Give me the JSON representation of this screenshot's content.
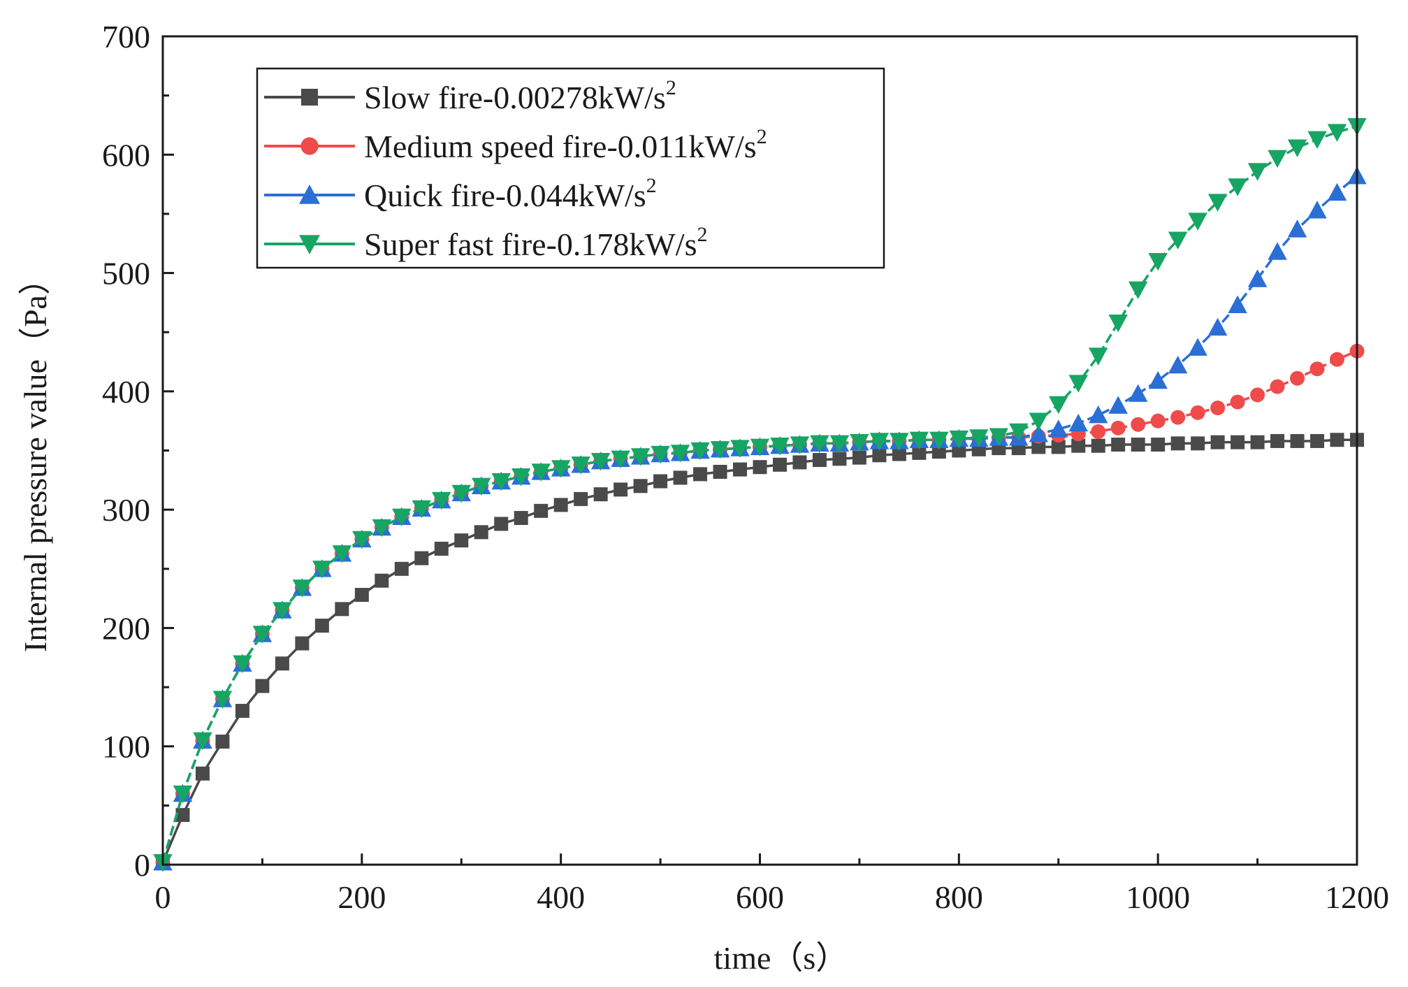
{
  "chart_data": {
    "type": "line",
    "xlabel": "time（s）",
    "ylabel": "Internal pressure value（Pa）",
    "xlim": [
      0,
      1200
    ],
    "ylim": [
      0,
      700
    ],
    "xticks": [
      "0",
      "200",
      "400",
      "600",
      "800",
      "1000",
      "1200"
    ],
    "yticks": [
      "0",
      "100",
      "200",
      "300",
      "400",
      "500",
      "600",
      "700"
    ],
    "grid": false,
    "legend_position": "top-left",
    "x": [
      0,
      20,
      40,
      60,
      80,
      100,
      120,
      140,
      160,
      180,
      200,
      220,
      240,
      260,
      280,
      300,
      320,
      340,
      360,
      380,
      400,
      420,
      440,
      460,
      480,
      500,
      520,
      540,
      560,
      580,
      600,
      620,
      640,
      660,
      680,
      700,
      720,
      740,
      760,
      780,
      800,
      820,
      840,
      860,
      880,
      900,
      920,
      940,
      960,
      980,
      1000,
      1020,
      1040,
      1060,
      1080,
      1100,
      1120,
      1140,
      1160,
      1180,
      1200
    ],
    "series": [
      {
        "name": "Slow fire-0.00278kW/s",
        "sup": "2",
        "color": "#4a4a4a",
        "marker": "square",
        "values": [
          2,
          42,
          77,
          104,
          130,
          151,
          170,
          187,
          202,
          216,
          228,
          240,
          250,
          259,
          267,
          274,
          281,
          288,
          293,
          299,
          304,
          309,
          313,
          317,
          320,
          324,
          327,
          330,
          332,
          334,
          336,
          338,
          340,
          342,
          343,
          344,
          346,
          347,
          348,
          349,
          350,
          351,
          352,
          352,
          353,
          353,
          354,
          354,
          355,
          355,
          355,
          356,
          356,
          357,
          357,
          357,
          358,
          358,
          358,
          359,
          359
        ]
      },
      {
        "name": "Medium speed fire-0.011kW/s",
        "sup": "2",
        "color": "#ef4b4b",
        "marker": "circle",
        "values": [
          2,
          60,
          105,
          140,
          170,
          195,
          215,
          234,
          250,
          263,
          275,
          285,
          294,
          301,
          308,
          314,
          320,
          324,
          328,
          332,
          335,
          338,
          341,
          343,
          345,
          347,
          348,
          350,
          351,
          352,
          353,
          354,
          355,
          356,
          356,
          357,
          358,
          358,
          359,
          359,
          360,
          360,
          361,
          361,
          362,
          363,
          364,
          366,
          369,
          372,
          375,
          378,
          382,
          386,
          391,
          397,
          404,
          411,
          419,
          427,
          434
        ]
      },
      {
        "name": "Quick fire-0.044kW/s",
        "sup": "2",
        "color": "#2b6fd6",
        "marker": "triangle-up",
        "values": [
          2,
          60,
          105,
          140,
          170,
          195,
          215,
          234,
          250,
          263,
          275,
          285,
          294,
          301,
          308,
          314,
          320,
          324,
          328,
          332,
          335,
          338,
          341,
          343,
          345,
          347,
          348,
          350,
          351,
          352,
          353,
          354,
          355,
          356,
          356,
          357,
          358,
          358,
          359,
          359,
          360,
          360,
          361,
          361,
          364,
          368,
          373,
          380,
          388,
          398,
          409,
          422,
          437,
          454,
          473,
          495,
          518,
          537,
          553,
          568,
          582
        ]
      },
      {
        "name": "Super fast fire-0.178kW/s",
        "sup": "2",
        "color": "#17a564",
        "marker": "triangle-down",
        "values": [
          2,
          60,
          105,
          140,
          170,
          195,
          215,
          234,
          250,
          263,
          275,
          285,
          294,
          301,
          308,
          314,
          320,
          324,
          328,
          332,
          335,
          338,
          341,
          343,
          345,
          347,
          348,
          350,
          351,
          352,
          353,
          354,
          355,
          356,
          356,
          357,
          358,
          358,
          359,
          359,
          360,
          361,
          362,
          366,
          375,
          389,
          407,
          430,
          458,
          486,
          510,
          528,
          544,
          560,
          573,
          586,
          597,
          606,
          613,
          619,
          624
        ]
      }
    ]
  }
}
